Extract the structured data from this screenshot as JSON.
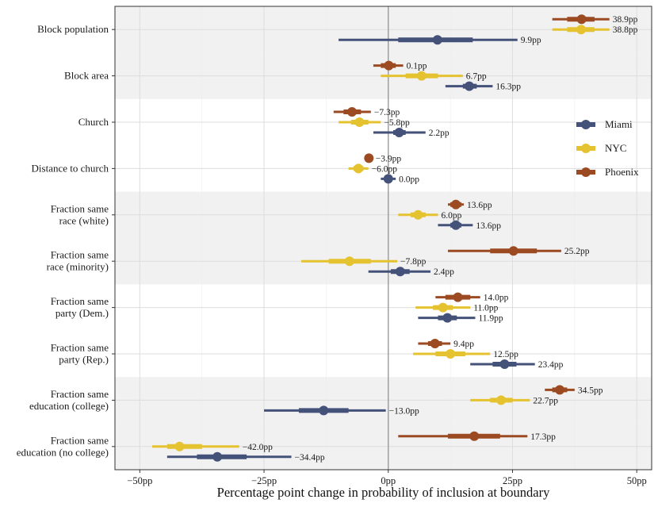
{
  "chart_data": {
    "type": "dot-whisker",
    "title": "",
    "xlabel": "Percentage point change in probability of inclusion at boundary",
    "ylabel": "",
    "xlim": [
      -55,
      53
    ],
    "xticks": [
      -50,
      -25,
      0,
      25,
      50
    ],
    "xtick_labels": [
      "−50pp",
      "−25pp",
      "0pp",
      "25pp",
      "50pp"
    ],
    "zero_line": 0,
    "legend": {
      "position": "right",
      "entries": [
        "Miami",
        "NYC",
        "Phoenix"
      ]
    },
    "colors": {
      "Miami": "#44527a",
      "NYC": "#e5c22f",
      "Phoenix": "#9c4a22"
    },
    "categories": [
      {
        "label": [
          "Block population"
        ],
        "shaded": true
      },
      {
        "label": [
          "Block area"
        ],
        "shaded": true
      },
      {
        "label": [
          "Church"
        ],
        "shaded": false
      },
      {
        "label": [
          "Distance to church"
        ],
        "shaded": false
      },
      {
        "label": [
          "Fraction same",
          "race (white)"
        ],
        "shaded": true
      },
      {
        "label": [
          "Fraction same",
          "race (minority)"
        ],
        "shaded": true
      },
      {
        "label": [
          "Fraction same",
          "party (Dem.)"
        ],
        "shaded": false
      },
      {
        "label": [
          "Fraction same",
          "party (Rep.)"
        ],
        "shaded": false
      },
      {
        "label": [
          "Fraction same",
          "education (college)"
        ],
        "shaded": true
      },
      {
        "label": [
          "Fraction same",
          "education (no college)"
        ],
        "shaded": true
      }
    ],
    "series": [
      {
        "name": "Phoenix",
        "points": [
          {
            "est": 38.9,
            "lo90": 36.0,
            "hi90": 41.5,
            "lo95": 33.0,
            "hi95": 44.5,
            "label": "38.9pp"
          },
          {
            "est": 0.1,
            "lo90": -1.5,
            "hi90": 1.5,
            "lo95": -3.0,
            "hi95": 3.0,
            "label": "0.1pp"
          },
          {
            "est": -7.3,
            "lo90": -9.0,
            "hi90": -5.5,
            "lo95": -11.0,
            "hi95": -3.5,
            "label": "−7.3pp"
          },
          {
            "est": -3.9,
            "lo90": -4.3,
            "hi90": -3.5,
            "lo95": -4.5,
            "hi95": -3.2,
            "label": "−3.9pp"
          },
          {
            "est": 13.6,
            "lo90": 12.5,
            "hi90": 14.7,
            "lo95": 12.0,
            "hi95": 15.2,
            "label": "13.6pp"
          },
          {
            "est": 25.2,
            "lo90": 20.5,
            "hi90": 29.9,
            "lo95": 12.0,
            "hi95": 34.8,
            "label": "25.2pp"
          },
          {
            "est": 14.0,
            "lo90": 11.5,
            "hi90": 16.5,
            "lo95": 9.5,
            "hi95": 18.5,
            "label": "14.0pp"
          },
          {
            "est": 9.4,
            "lo90": 8.0,
            "hi90": 10.8,
            "lo95": 6.0,
            "hi95": 12.5,
            "label": "9.4pp"
          },
          {
            "est": 34.5,
            "lo90": 33.0,
            "hi90": 36.0,
            "lo95": 31.5,
            "hi95": 37.5,
            "label": "34.5pp"
          },
          {
            "est": 17.3,
            "lo90": 12.0,
            "hi90": 22.5,
            "lo95": 2.0,
            "hi95": 28.0,
            "label": "17.3pp"
          }
        ]
      },
      {
        "name": "NYC",
        "points": [
          {
            "est": 38.8,
            "lo90": 36.0,
            "hi90": 41.5,
            "lo95": 33.0,
            "hi95": 44.5,
            "label": "38.8pp"
          },
          {
            "est": 6.7,
            "lo90": 3.5,
            "hi90": 10.0,
            "lo95": -1.5,
            "hi95": 15.0,
            "label": "6.7pp"
          },
          {
            "est": -5.8,
            "lo90": -7.5,
            "hi90": -4.0,
            "lo95": -10.0,
            "hi95": -1.5,
            "label": "−5.8pp"
          },
          {
            "est": -6.0,
            "lo90": -7.0,
            "hi90": -5.0,
            "lo95": -8.0,
            "hi95": -4.0,
            "label": "−6.0pp"
          },
          {
            "est": 6.0,
            "lo90": 4.5,
            "hi90": 7.5,
            "lo95": 2.0,
            "hi95": 10.0,
            "label": "6.0pp"
          },
          {
            "est": -7.8,
            "lo90": -12.0,
            "hi90": -3.5,
            "lo95": -17.5,
            "hi95": 1.8,
            "label": "−7.8pp"
          },
          {
            "est": 11.0,
            "lo90": 9.0,
            "hi90": 13.0,
            "lo95": 5.5,
            "hi95": 16.5,
            "label": "11.0pp"
          },
          {
            "est": 12.5,
            "lo90": 9.5,
            "hi90": 15.5,
            "lo95": 5.0,
            "hi95": 20.5,
            "label": "12.5pp"
          },
          {
            "est": 22.7,
            "lo90": 20.5,
            "hi90": 25.0,
            "lo95": 16.5,
            "hi95": 28.5,
            "label": "22.7pp"
          },
          {
            "est": -42.0,
            "lo90": -44.5,
            "hi90": -37.5,
            "lo95": -47.5,
            "hi95": -30.0,
            "label": "−42.0pp"
          }
        ]
      },
      {
        "name": "Miami",
        "points": [
          {
            "est": 9.9,
            "lo90": 2.0,
            "hi90": 17.0,
            "lo95": -10.0,
            "hi95": 26.0,
            "label": "9.9pp"
          },
          {
            "est": 16.3,
            "lo90": 15.0,
            "hi90": 17.8,
            "lo95": 11.5,
            "hi95": 21.0,
            "label": "16.3pp"
          },
          {
            "est": 2.2,
            "lo90": 1.0,
            "hi90": 3.5,
            "lo95": -3.0,
            "hi95": 7.5,
            "label": "2.2pp"
          },
          {
            "est": 0.0,
            "lo90": -0.4,
            "hi90": 0.4,
            "lo95": -1.5,
            "hi95": 1.5,
            "label": "0.0pp"
          },
          {
            "est": 13.6,
            "lo90": 12.5,
            "hi90": 14.7,
            "lo95": 10.0,
            "hi95": 17.0,
            "label": "13.6pp"
          },
          {
            "est": 2.4,
            "lo90": 0.5,
            "hi90": 4.3,
            "lo95": -4.0,
            "hi95": 8.5,
            "label": "2.4pp"
          },
          {
            "est": 11.9,
            "lo90": 10.0,
            "hi90": 13.8,
            "lo95": 6.0,
            "hi95": 17.5,
            "label": "11.9pp"
          },
          {
            "est": 23.4,
            "lo90": 21.0,
            "hi90": 25.8,
            "lo95": 16.5,
            "hi95": 29.5,
            "label": "23.4pp"
          },
          {
            "est": -13.0,
            "lo90": -18.0,
            "hi90": -8.0,
            "lo95": -25.0,
            "hi95": -0.5,
            "label": "−13.0pp"
          },
          {
            "est": -34.4,
            "lo90": -38.5,
            "hi90": -28.5,
            "lo95": -44.5,
            "hi95": -19.5,
            "label": "−34.4pp"
          }
        ]
      }
    ]
  }
}
